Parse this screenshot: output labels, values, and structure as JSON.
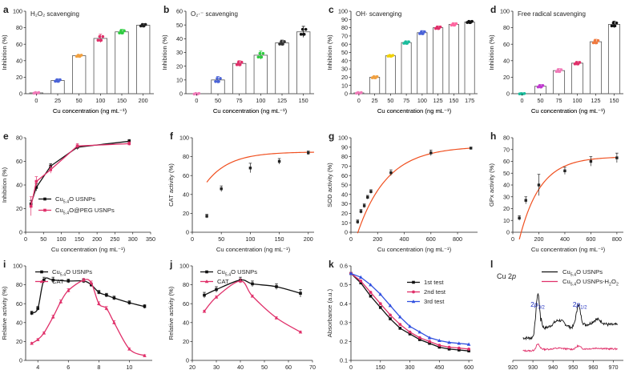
{
  "chart_data": [
    {
      "id": "a",
      "panel_label": "a",
      "type": "bar",
      "title": "H₂O₂ scavenging",
      "ylabel": "Inhibition (%)",
      "xlabel": "Cu concentration (ng mL⁻¹)",
      "categories": [
        "0",
        "25",
        "50",
        "100",
        "150",
        "200"
      ],
      "values": [
        1,
        16,
        46,
        67,
        75,
        83
      ],
      "errors": [
        1,
        2,
        1.5,
        5,
        3,
        2
      ],
      "colors": [
        "#f07ab8",
        "#4a63d8",
        "#f0a040",
        "#e0306a",
        "#2ecc40",
        "#222222"
      ],
      "ylim": [
        0,
        100
      ],
      "yticks": [
        0,
        20,
        40,
        60,
        80,
        100
      ]
    },
    {
      "id": "b",
      "panel_label": "b",
      "type": "bar",
      "title": "O₂·⁻ scavenging",
      "ylabel": "Inhibition (%)",
      "xlabel": "Cu concentration (ng mL⁻¹)",
      "categories": [
        "0",
        "50",
        "75",
        "100",
        "125",
        "150"
      ],
      "values": [
        0,
        10,
        22,
        28,
        37,
        45
      ],
      "errors": [
        0.5,
        2.5,
        2,
        3,
        2,
        4
      ],
      "colors": [
        "#f07ab8",
        "#4a63d8",
        "#e0306a",
        "#2ecc40",
        "#333333",
        "#111111"
      ],
      "ylim": [
        0,
        60
      ],
      "yticks": [
        0,
        10,
        20,
        30,
        40,
        50,
        60
      ]
    },
    {
      "id": "c",
      "panel_label": "c",
      "type": "bar",
      "title": "OH· scavenging",
      "ylabel": "Inhibition (%)",
      "xlabel": "Cu concentration (ng mL⁻¹)",
      "categories": [
        "0",
        "25",
        "50",
        "75",
        "100",
        "125",
        "150",
        "175"
      ],
      "values": [
        1,
        20,
        46,
        62,
        74,
        80,
        84,
        87
      ],
      "errors": [
        1,
        1.5,
        1,
        2,
        2.5,
        2,
        2,
        1.5
      ],
      "colors": [
        "#f07ab8",
        "#f0a040",
        "#f0d000",
        "#1abc9c",
        "#4a63d8",
        "#e0306a",
        "#ff66a0",
        "#111111"
      ],
      "ylim": [
        0,
        100
      ],
      "yticks": [
        0,
        10,
        20,
        30,
        40,
        50,
        60,
        70,
        80,
        90,
        100
      ]
    },
    {
      "id": "d",
      "panel_label": "d",
      "type": "bar",
      "title": "Free radical scavenging",
      "ylabel": "Inhibition (%)",
      "xlabel": "Cu concentration (ng mL⁻¹)",
      "categories": [
        "0",
        "50",
        "75",
        "100",
        "125",
        "150"
      ],
      "values": [
        0,
        9,
        28,
        37,
        63,
        84
      ],
      "errors": [
        0.5,
        2,
        2.5,
        2,
        3,
        4
      ],
      "colors": [
        "#1abc9c",
        "#c03ad0",
        "#f07ab8",
        "#e0306a",
        "#f07a40",
        "#111111"
      ],
      "ylim": [
        0,
        100
      ],
      "yticks": [
        0,
        20,
        40,
        60,
        80,
        100
      ]
    },
    {
      "id": "e",
      "panel_label": "e",
      "type": "line",
      "ylabel": "Inhibition (%)",
      "xlabel": "Cu concentration (ng mL⁻¹)",
      "xlim": [
        0,
        350
      ],
      "ylim": [
        0,
        80
      ],
      "xticks": [
        0,
        50,
        100,
        150,
        200,
        250,
        300,
        350
      ],
      "yticks": [
        0,
        20,
        40,
        60,
        80
      ],
      "series": [
        {
          "name": "Cu5.4O USNPs",
          "color": "#111111",
          "marker": "square",
          "x": [
            15,
            30,
            70,
            145,
            290
          ],
          "y": [
            24,
            38,
            56,
            72,
            77
          ],
          "err": [
            3,
            3,
            2,
            2,
            1.5
          ]
        },
        {
          "name": "Cu5.4O@PEG USNPs",
          "color": "#e0306a",
          "marker": "square",
          "x": [
            15,
            30,
            70,
            145,
            290
          ],
          "y": [
            22,
            43,
            53,
            73,
            75
          ],
          "err": [
            8,
            4,
            3,
            2,
            1.5
          ]
        }
      ],
      "legend_parts": [
        [
          "Cu",
          ""
        ],
        [
          "5.4",
          "sub"
        ],
        [
          "O USNPs",
          ""
        ],
        [
          "|",
          ""
        ],
        [
          "Cu",
          ""
        ],
        [
          "5.4",
          "sub"
        ],
        [
          "O@PEG USNPs",
          ""
        ]
      ]
    },
    {
      "id": "f",
      "panel_label": "f",
      "type": "scatter-fit",
      "ylabel": "CAT activity (%)",
      "xlabel": "Cu concentration (ng mL⁻¹)",
      "xlim": [
        0,
        210
      ],
      "ylim": [
        0,
        100
      ],
      "xticks": [
        0,
        50,
        100,
        150,
        200
      ],
      "yticks": [
        0,
        20,
        40,
        60,
        80,
        100
      ],
      "x": [
        25,
        50,
        100,
        150,
        200
      ],
      "y": [
        17,
        46,
        68,
        75,
        84
      ],
      "err": [
        2,
        3,
        5,
        3,
        2
      ],
      "fit_color": "#f05020",
      "fit": {
        "kind": "exp",
        "a": 85,
        "b": -32,
        "c": 0.025,
        "x0": 25,
        "x1": 210
      }
    },
    {
      "id": "g",
      "panel_label": "g",
      "type": "scatter-fit",
      "ylabel": "SOD activity (%)",
      "xlabel": "Cu concentration (ng mL⁻¹)",
      "xlim": [
        0,
        950
      ],
      "ylim": [
        0,
        100
      ],
      "xticks": [
        0,
        200,
        400,
        600,
        800
      ],
      "yticks": [
        0,
        10,
        20,
        30,
        40,
        50,
        60,
        70,
        80,
        90,
        100
      ],
      "x": [
        50,
        75,
        100,
        125,
        150,
        300,
        600,
        900
      ],
      "y": [
        11,
        22,
        28,
        37,
        43,
        63,
        84,
        89
      ],
      "err": [
        2,
        2,
        2,
        2,
        2,
        3,
        3,
        1
      ],
      "fit_color": "#f05020",
      "fit": {
        "kind": "exp",
        "a": 91,
        "b": -92,
        "c": 0.0045,
        "x0": 50,
        "x1": 900
      }
    },
    {
      "id": "h",
      "panel_label": "h",
      "type": "scatter-fit",
      "ylabel": "GPx activity (%)",
      "xlabel": "Cu concentration (ng mL⁻¹)",
      "xlim": [
        0,
        850
      ],
      "ylim": [
        0,
        80
      ],
      "xticks": [
        0,
        200,
        400,
        600,
        800
      ],
      "yticks": [
        0,
        10,
        20,
        30,
        40,
        50,
        60,
        70,
        80
      ],
      "x": [
        50,
        100,
        200,
        400,
        600,
        800
      ],
      "y": [
        12,
        27,
        40,
        52,
        60,
        63
      ],
      "err": [
        2,
        3,
        9,
        3,
        4,
        4
      ],
      "fit_color": "#f05020",
      "fit": {
        "kind": "exp",
        "a": 64,
        "b": -70,
        "c": 0.0062,
        "x0": 50,
        "x1": 800
      }
    },
    {
      "id": "i",
      "panel_label": "i",
      "type": "line",
      "ylabel": "Relative activity (%)",
      "xlabel": "pH",
      "xlim": [
        3.2,
        11.5
      ],
      "ylim": [
        0,
        100
      ],
      "xticks": [
        4,
        6,
        8,
        10
      ],
      "yticks": [
        0,
        20,
        40,
        60,
        80,
        100
      ],
      "series": [
        {
          "name": "Cu5.4O USNPs",
          "color": "#111111",
          "marker": "square",
          "x": [
            3.6,
            4,
            4.4,
            5,
            6,
            7,
            7.5,
            8,
            8.5,
            9,
            10,
            11
          ],
          "y": [
            50,
            55,
            85,
            85,
            84,
            84,
            80,
            72,
            69,
            66,
            61,
            57
          ],
          "err": [
            2,
            2,
            3,
            3,
            2,
            2,
            2,
            2,
            2,
            2,
            2,
            2
          ]
        },
        {
          "name": "CAT",
          "color": "#e0306a",
          "marker": "triangle",
          "x": [
            3.6,
            4,
            4.4,
            5,
            5.5,
            6,
            7,
            7.5,
            8,
            8.5,
            9,
            10,
            11
          ],
          "y": [
            18,
            22,
            29,
            46,
            62,
            74,
            85,
            82,
            60,
            55,
            40,
            12,
            5
          ],
          "err": [
            1,
            1,
            1,
            2,
            2,
            2,
            2,
            2,
            2,
            2,
            2,
            1,
            1
          ]
        }
      ],
      "legend_parts": [
        [
          "Cu",
          ""
        ],
        [
          "5.4",
          "sub"
        ],
        [
          "O USNPs",
          ""
        ],
        [
          "|",
          ""
        ],
        [
          "CAT",
          ""
        ]
      ]
    },
    {
      "id": "j",
      "panel_label": "j",
      "type": "line",
      "ylabel": "Relative activity (%)",
      "xlabel": "Temperature (°C)",
      "xlim": [
        20,
        70
      ],
      "ylim": [
        0,
        100
      ],
      "xticks": [
        20,
        30,
        40,
        50,
        60,
        70
      ],
      "yticks": [
        0,
        20,
        40,
        60,
        80,
        100
      ],
      "series": [
        {
          "name": "Cu5.4O USNPs",
          "color": "#111111",
          "marker": "square",
          "x": [
            25,
            30,
            40,
            45,
            55,
            65
          ],
          "y": [
            69,
            75,
            85,
            81,
            78,
            71
          ],
          "err": [
            3,
            3,
            3,
            3,
            3,
            4
          ]
        },
        {
          "name": "CAT",
          "color": "#e0306a",
          "marker": "triangle",
          "x": [
            25,
            30,
            40,
            45,
            55,
            65
          ],
          "y": [
            52,
            67,
            84,
            68,
            45,
            30
          ],
          "err": [
            1,
            1,
            2,
            1,
            1,
            1
          ]
        }
      ],
      "legend_parts": [
        [
          "Cu",
          ""
        ],
        [
          "5.4",
          "sub"
        ],
        [
          "O USNPs",
          ""
        ],
        [
          "|",
          ""
        ],
        [
          "CAT",
          ""
        ]
      ]
    },
    {
      "id": "k",
      "panel_label": "k",
      "type": "line",
      "ylabel": "Absorbance (a.u.)",
      "xlabel": "Time (s)",
      "xlim": [
        0,
        620
      ],
      "ylim": [
        0.1,
        0.6
      ],
      "xticks": [
        0,
        150,
        300,
        450,
        600
      ],
      "yticks": [
        0.1,
        0.2,
        0.3,
        0.4,
        0.5,
        0.6
      ],
      "series": [
        {
          "name": "1st test",
          "color": "#111111",
          "marker": "square",
          "x": [
            0,
            50,
            100,
            150,
            200,
            250,
            300,
            350,
            400,
            450,
            500,
            550,
            600
          ],
          "y": [
            0.56,
            0.51,
            0.44,
            0.38,
            0.32,
            0.27,
            0.24,
            0.21,
            0.19,
            0.17,
            0.16,
            0.155,
            0.15
          ]
        },
        {
          "name": "2nd test",
          "color": "#e0306a",
          "marker": "circle",
          "x": [
            0,
            50,
            100,
            150,
            200,
            250,
            300,
            350,
            400,
            450,
            500,
            550,
            600
          ],
          "y": [
            0.56,
            0.52,
            0.46,
            0.4,
            0.34,
            0.29,
            0.25,
            0.22,
            0.2,
            0.18,
            0.17,
            0.165,
            0.16
          ]
        },
        {
          "name": "3rd test",
          "color": "#3050e0",
          "marker": "triangle",
          "x": [
            0,
            50,
            100,
            150,
            200,
            250,
            300,
            350,
            400,
            450,
            500,
            550,
            600
          ],
          "y": [
            0.56,
            0.54,
            0.5,
            0.45,
            0.39,
            0.33,
            0.28,
            0.25,
            0.22,
            0.205,
            0.195,
            0.19,
            0.185
          ]
        }
      ]
    },
    {
      "id": "l",
      "panel_label": "l",
      "type": "line",
      "xlabel": "Binding energy (eV)",
      "label": "Cu 2p",
      "xlim": [
        920,
        975
      ],
      "xticks": [
        920,
        930,
        940,
        950,
        960,
        970
      ],
      "series": [
        {
          "name": "Cu5.4O USNPs",
          "color": "#111111"
        },
        {
          "name": "Cu5.4O USNPs-H2O2",
          "color": "#e0306a"
        }
      ],
      "legend_parts": [
        [
          "Cu",
          ""
        ],
        [
          "5.4",
          "sub"
        ],
        [
          "O USNPs",
          ""
        ],
        [
          "|",
          ""
        ],
        [
          "Cu",
          ""
        ],
        [
          "5.4",
          "sub"
        ],
        [
          "O USNPs-H",
          ""
        ],
        [
          "2",
          "sub"
        ],
        [
          "O",
          ""
        ],
        [
          "2",
          "sub"
        ]
      ],
      "peaks": [
        {
          "x": 932,
          "parts": [
            [
              "2",
              ""
            ],
            [
              "p",
              "italic"
            ],
            [
              "3/2",
              "sub"
            ]
          ]
        },
        {
          "x": 953,
          "parts": [
            [
              "2",
              ""
            ],
            [
              "p",
              "italic"
            ],
            [
              "1/2",
              "sub"
            ]
          ]
        }
      ]
    }
  ]
}
